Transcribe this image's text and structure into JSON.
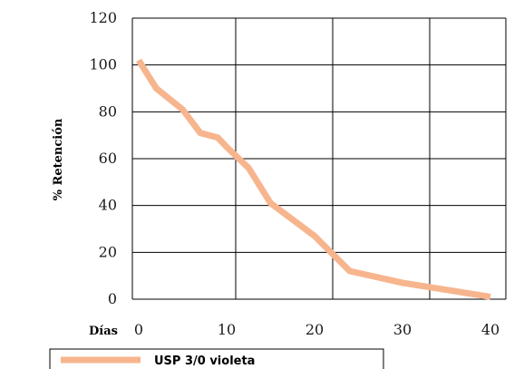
{
  "chart_data": {
    "type": "line",
    "title": "",
    "xlabel": "Días",
    "ylabel": "% Retención",
    "xlim": [
      0,
      40
    ],
    "ylim": [
      0,
      120
    ],
    "x_ticks": [
      0,
      10,
      20,
      30,
      40
    ],
    "y_ticks": [
      0,
      20,
      40,
      60,
      80,
      100,
      120
    ],
    "grid": true,
    "legend_position": "bottom",
    "series": [
      {
        "name": "USP 3/0 violeta",
        "color": "#f7b58e",
        "points": [
          [
            0,
            102
          ],
          [
            2,
            90
          ],
          [
            5,
            81
          ],
          [
            7,
            71
          ],
          [
            9,
            69
          ],
          [
            10,
            65
          ],
          [
            12.5,
            56
          ],
          [
            15,
            41
          ],
          [
            20,
            27
          ],
          [
            24,
            12
          ],
          [
            30,
            7
          ],
          [
            35,
            4
          ],
          [
            40,
            1
          ]
        ]
      }
    ]
  }
}
